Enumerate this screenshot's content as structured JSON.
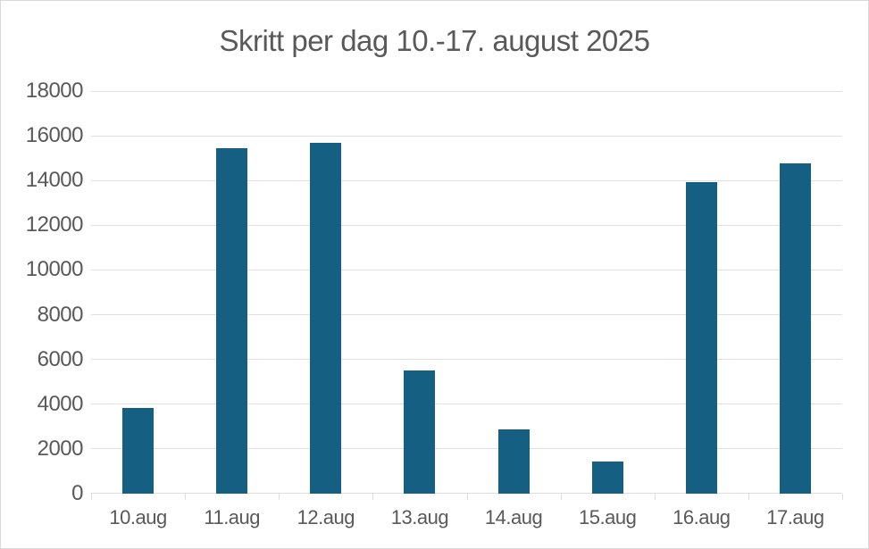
{
  "chart_data": {
    "type": "bar",
    "title": "Skritt per dag 10.-17. august 2025",
    "categories": [
      "10.aug",
      "11.aug",
      "12.aug",
      "13.aug",
      "14.aug",
      "15.aug",
      "16.aug",
      "17.aug"
    ],
    "values": [
      3820,
      15450,
      15670,
      5520,
      2870,
      1420,
      13940,
      14780
    ],
    "xlabel": "",
    "ylabel": "",
    "ylim": [
      0,
      18000
    ],
    "yticks": [
      0,
      2000,
      4000,
      6000,
      8000,
      10000,
      12000,
      14000,
      16000,
      18000
    ],
    "grid": true,
    "legend": false,
    "colors": {
      "bar": "#156082",
      "gridline": "#e0e0e0",
      "axis_line": "#dcdcdc",
      "tick_mark": "#dcdcdc",
      "title_text": "#595959",
      "axis_text": "#595959",
      "background": "#ffffff",
      "canvas_border": "#d9d9d9"
    }
  }
}
